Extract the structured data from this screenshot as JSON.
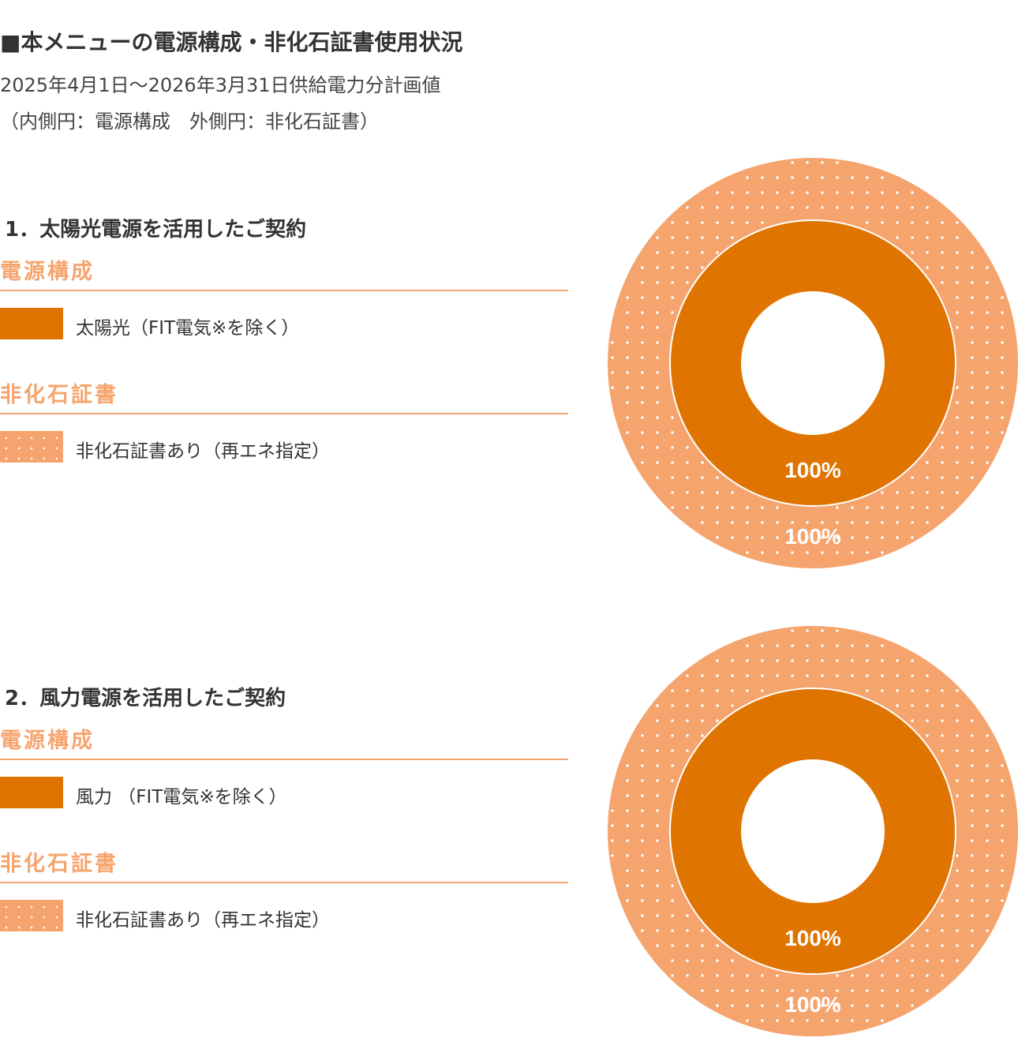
{
  "header": {
    "title": "■本メニューの電源構成・非化石証書使用状況",
    "period": "2025年4月1日～2026年3月31日供給電力分計画値",
    "note": "（内側円：電源構成　外側円：非化石証書）"
  },
  "colors": {
    "power_source": "#e07400",
    "certificate": "#f6a46e",
    "dot": "#ffffff",
    "heading_accent": "#f6a46e"
  },
  "sections": [
    {
      "title": "1．太陽光電源を活用したご契約",
      "power_source_heading": "電源構成",
      "power_source_label": "太陽光（FIT電気※を除く）",
      "certificate_heading": "非化石証書",
      "certificate_label": "非化石証書あり（再エネ指定）",
      "inner_label": "100%",
      "outer_label": "100%"
    },
    {
      "title": "2．風力電源を活用したご契約",
      "power_source_heading": "電源構成",
      "power_source_label": "風力 （FIT電気※を除く）",
      "certificate_heading": "非化石証書",
      "certificate_label": "非化石証書あり（再エネ指定）",
      "inner_label": "100%",
      "outer_label": "100%"
    }
  ],
  "chart_data": [
    {
      "type": "pie",
      "rings": [
        {
          "ring": "inner",
          "categories": [
            "太陽光（FIT電気※を除く）"
          ],
          "values": [
            100
          ],
          "labels": [
            "100%"
          ],
          "color": "#e07400"
        },
        {
          "ring": "outer",
          "categories": [
            "非化石証書あり（再エネ指定）"
          ],
          "values": [
            100
          ],
          "labels": [
            "100%"
          ],
          "color": "#f6a46e",
          "pattern": "dots"
        }
      ]
    },
    {
      "type": "pie",
      "rings": [
        {
          "ring": "inner",
          "categories": [
            "風力 （FIT電気※を除く）"
          ],
          "values": [
            100
          ],
          "labels": [
            "100%"
          ],
          "color": "#e07400"
        },
        {
          "ring": "outer",
          "categories": [
            "非化石証書あり（再エネ指定）"
          ],
          "values": [
            100
          ],
          "labels": [
            "100%"
          ],
          "color": "#f6a46e",
          "pattern": "dots"
        }
      ]
    }
  ]
}
